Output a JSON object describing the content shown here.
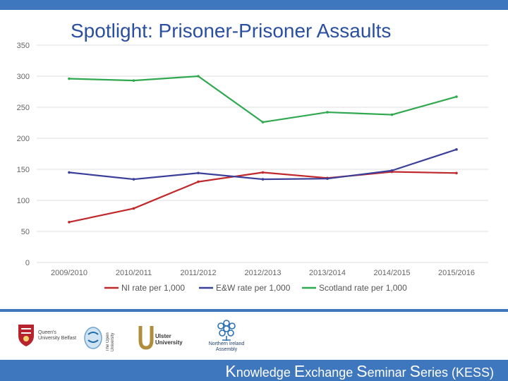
{
  "slide": {
    "title": "Spotlight: Prisoner-Prisoner Assaults"
  },
  "colors": {
    "header_bar": "#3f77bf",
    "title": "#2b4fa0",
    "ni": "#c0282c",
    "ew": "#3a3f9a",
    "scotland": "#2fa84f",
    "grid": "#dddddd"
  },
  "chart_data": {
    "type": "line",
    "title": "",
    "xlabel": "",
    "ylabel": "",
    "ylim": [
      0,
      350
    ],
    "yticks": [
      0,
      50,
      100,
      150,
      200,
      250,
      300,
      350
    ],
    "grid": true,
    "legend": "bottom",
    "categories": [
      "2009/2010",
      "2010/2011",
      "2011/2012",
      "2012/2013",
      "2013/2014",
      "2014/2015",
      "2015/2016"
    ],
    "series": [
      {
        "name": "NI rate per 1,000",
        "color": "#c0282c",
        "values": [
          65,
          87,
          130,
          145,
          136,
          146,
          144
        ]
      },
      {
        "name": "E&W rate per 1,000",
        "color": "#3a3f9a",
        "values": [
          145,
          134,
          144,
          134,
          135,
          148,
          182
        ]
      },
      {
        "name": "Scotland rate per 1,000",
        "color": "#2fa84f",
        "values": [
          296,
          293,
          300,
          226,
          242,
          238,
          267
        ]
      }
    ]
  },
  "logos": {
    "queens": "Queen's University Belfast",
    "open": "The Open University",
    "ulster": "Ulster University",
    "nia": "Northern Ireland Assembly"
  },
  "footer": {
    "k_cap": "K",
    "k_rest": "nowledge ",
    "e_cap": "E",
    "e_rest": "xchange ",
    "s1_cap": "S",
    "s1_rest": "eminar ",
    "s2_cap": "S",
    "s2_rest": "eries ",
    "abbr": "(KESS)"
  }
}
